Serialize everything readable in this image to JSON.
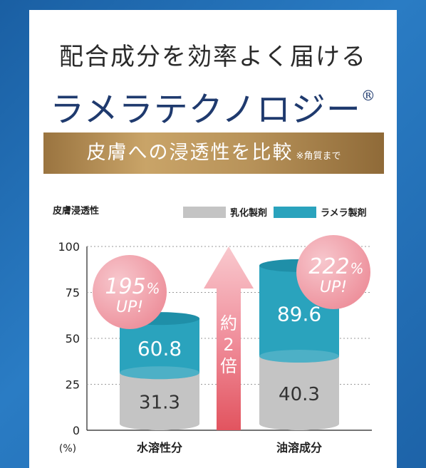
{
  "headline": "配合成分を効率よく届ける",
  "brand": {
    "name": "ラメラテクノロジー",
    "mark": "®"
  },
  "band": {
    "title": "皮膚への浸透性を比較",
    "note": "※角質まで"
  },
  "colors": {
    "emulsion": "#c4c4c4",
    "lamellar": "#2aa3bd",
    "arrow": "#ef8c98",
    "badge": "#f1aab4"
  },
  "chart_data": {
    "type": "bar",
    "ylabel": "皮膚浸透性",
    "unit": "(%)",
    "ylim": [
      0,
      100
    ],
    "yticks": [
      "100",
      "75",
      "50",
      "25",
      "0"
    ],
    "categories": [
      "水溶性分",
      "油溶成分"
    ],
    "series": [
      {
        "name": "乳化製剤",
        "values": [
          31.3,
          40.3
        ]
      },
      {
        "name": "ラメラ製剤",
        "values": [
          60.8,
          89.6
        ]
      }
    ],
    "badges": [
      {
        "pct": "195",
        "sym": "%",
        "up": "UP!"
      },
      {
        "pct": "222",
        "sym": "%",
        "up": "UP!"
      }
    ],
    "arrow_text": [
      "約",
      "2",
      "倍"
    ]
  }
}
